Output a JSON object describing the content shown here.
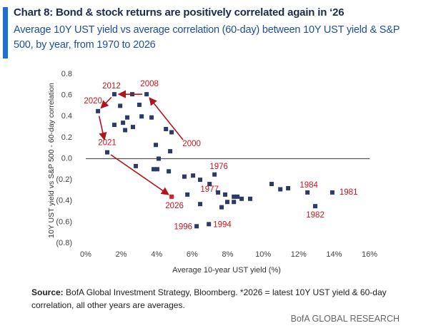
{
  "chart_data": {
    "type": "scatter",
    "title": "Chart 8: Bond & stock returns are positively correlated again in ‘26",
    "subtitle": "Average 10Y UST yield vs average correlation (60-day) between 10Y UST yield & S&P 500, by year, from 1970 to 2026",
    "x_label": "Average 10-year UST yield (%)",
    "y_label": "10Y UST yield vs S&P 500 - 60-day correlation",
    "source_label": "Source:",
    "source": "BofA Global Investment Strategy, Bloomberg. *2026 = latest 10Y UST yield & 60-day correlation, all other years are averages.",
    "brand": "BofA GLOBAL RESEARCH",
    "xlim": [
      0,
      16
    ],
    "xticks": [
      {
        "value": 0,
        "label": "0%"
      },
      {
        "value": 2,
        "label": "2%"
      },
      {
        "value": 4,
        "label": "4%"
      },
      {
        "value": 6,
        "label": "6%"
      },
      {
        "value": 8,
        "label": "8%"
      },
      {
        "value": 10,
        "label": "10%"
      },
      {
        "value": 12,
        "label": "12%"
      },
      {
        "value": 14,
        "label": "14%"
      },
      {
        "value": 16,
        "label": "16%"
      }
    ],
    "ylim": [
      -0.8,
      0.8
    ],
    "yticks": [
      0.8,
      0.6,
      0.4,
      0.2,
      {
        "value": 0,
        "label": "0.0"
      },
      {
        "value": -0.2,
        "label": "(0.2)"
      },
      {
        "value": -0.4,
        "label": "(0.4)"
      },
      {
        "value": -0.6,
        "label": "(0.6)"
      },
      {
        "value": -0.8,
        "label": "(0.8)"
      }
    ],
    "grid": false,
    "series": [
      {
        "color": "#2b3a67",
        "label_color": "#c8141e",
        "x": [
          1.61,
          3.43,
          0.69,
          1.21,
          4.76,
          7.26,
          6.98,
          12.5,
          12.94,
          13.9,
          6.25,
          6.94,
          2.62,
          3.02,
          1.94,
          1.61,
          2.1,
          2.22,
          2.34,
          2.66,
          3.15,
          3.71,
          4.52,
          4.84,
          3.95,
          4.11,
          2.82,
          3.83,
          4.03,
          4.68,
          5.56,
          6.05,
          6.45,
          5.73,
          6.45,
          7.46,
          7.86,
          8.35,
          8.35,
          8.55,
          8.79,
          9.27,
          7.98,
          7.66,
          10.48,
          10.97,
          11.41
        ],
        "values": [
          0.61,
          0.61,
          0.45,
          0.06,
          0.07,
          -0.15,
          -0.24,
          -0.32,
          -0.45,
          -0.32,
          -0.64,
          -0.62,
          0.61,
          0.51,
          0.5,
          0.32,
          0.34,
          0.27,
          0.39,
          0.3,
          0.4,
          0.39,
          0.28,
          0.25,
          0.13,
          0.0,
          -0.07,
          -0.1,
          -0.1,
          -0.12,
          -0.17,
          -0.16,
          -0.2,
          -0.34,
          -0.43,
          -0.32,
          -0.34,
          -0.36,
          -0.41,
          -0.36,
          -0.38,
          -0.38,
          -0.41,
          -0.46,
          -0.24,
          -0.29,
          -0.28
        ],
        "labels": [
          "2012",
          "2008",
          "2020",
          "2021",
          "2000",
          "1976",
          "1977",
          "1984",
          "1982",
          "1981",
          "1996",
          "1994",
          null,
          null,
          null,
          null,
          null,
          null,
          null,
          null,
          null,
          null,
          null,
          null,
          null,
          null,
          null,
          null,
          null,
          null,
          null,
          null,
          null,
          null,
          null,
          null,
          null,
          null,
          null,
          null,
          null,
          null,
          null,
          null,
          null,
          null,
          null
        ]
      },
      {
        "color": "#e0201c",
        "label_color": "#c8141e",
        "x": [
          4.84
        ],
        "values": [
          -0.36
        ],
        "labels": [
          "2026"
        ]
      }
    ]
  }
}
